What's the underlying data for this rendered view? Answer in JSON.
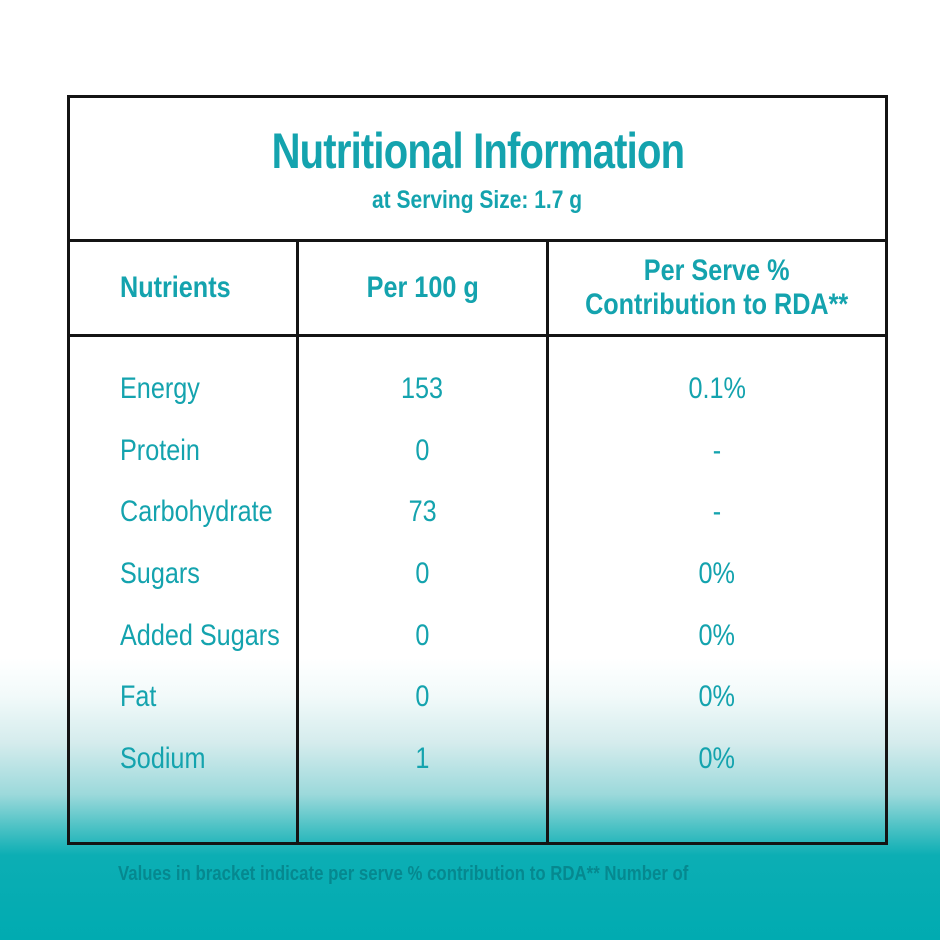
{
  "header": {
    "title": "Nutritional Information",
    "subtitle": "at Serving Size: 1.7 g"
  },
  "table": {
    "headers": {
      "nutrients": "Nutrients",
      "per_100g": "Per 100 g",
      "per_serve_line1": "Per Serve %",
      "per_serve_line2": "Contribution to RDA**"
    },
    "rows": [
      {
        "nutrient": "Energy",
        "per_100g": "153",
        "per_serve": "0.1%"
      },
      {
        "nutrient": "Protein",
        "per_100g": "0",
        "per_serve": "-"
      },
      {
        "nutrient": "Carbohydrate",
        "per_100g": "73",
        "per_serve": "-"
      },
      {
        "nutrient": "Sugars",
        "per_100g": "0",
        "per_serve": "0%"
      },
      {
        "nutrient": "Added Sugars",
        "per_100g": "0",
        "per_serve": "0%"
      },
      {
        "nutrient": "Fat",
        "per_100g": "0",
        "per_serve": "0%"
      },
      {
        "nutrient": "Sodium",
        "per_100g": "1",
        "per_serve": "0%"
      }
    ]
  },
  "footnote": {
    "text": "Values in bracket indicate per serve % contribution to RDA** Number of"
  },
  "colors": {
    "accent_teal": "#14a3ae",
    "background_teal": "#00abb1",
    "border_black": "#141414"
  }
}
